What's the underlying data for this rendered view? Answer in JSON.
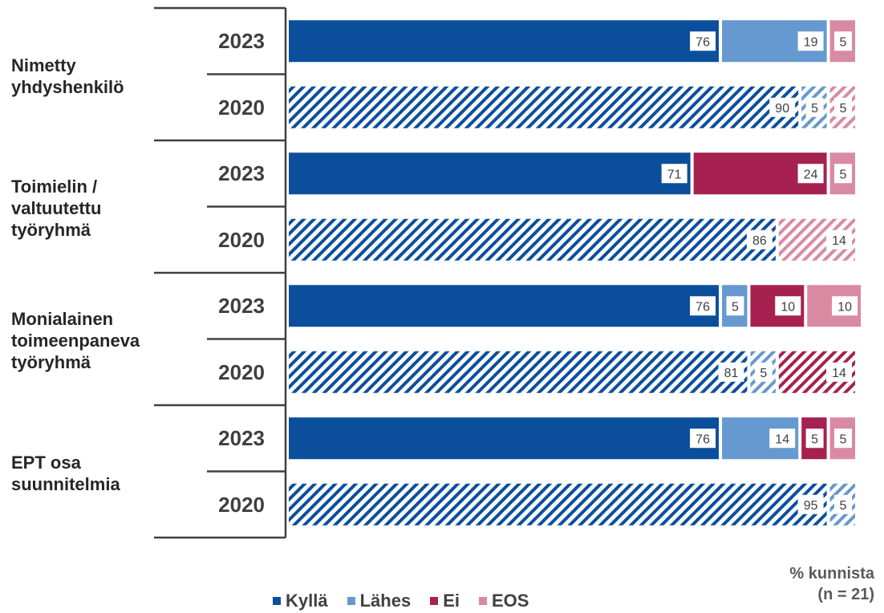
{
  "chart_data": {
    "type": "bar",
    "orientation": "horizontal",
    "stacked": true,
    "xlim": [
      0,
      100
    ],
    "groups": [
      {
        "label": "Nimetty yhdyshenkilö",
        "label_lines": [
          "Nimetty",
          "yhdyshenkilö"
        ],
        "rows": [
          {
            "year": "2023",
            "values": [
              76,
              19,
              0,
              5
            ],
            "labels": [
              "76",
              "19",
              "",
              "5"
            ]
          },
          {
            "year": "2020",
            "values": [
              90,
              5,
              0,
              5
            ],
            "labels": [
              "90",
              "5",
              "",
              "5"
            ]
          }
        ]
      },
      {
        "label": "Toimielin / valtuutettu työryhmä",
        "label_lines": [
          "Toimielin /",
          "valtuutettu",
          "työryhmä"
        ],
        "rows": [
          {
            "year": "2023",
            "values": [
              71,
              0,
              24,
              5
            ],
            "labels": [
              "71",
              "",
              "24",
              "5"
            ]
          },
          {
            "year": "2020",
            "values": [
              86,
              0,
              0,
              14
            ],
            "labels": [
              "86",
              "",
              "",
              "14"
            ]
          }
        ]
      },
      {
        "label": "Monialainen toimeenpaneva työryhmä",
        "label_lines": [
          "Monialainen",
          "toimeenpaneva",
          "työryhmä"
        ],
        "rows": [
          {
            "year": "2023",
            "values": [
              76,
              5,
              10,
              10
            ],
            "labels": [
              "76",
              "5",
              "10",
              "10"
            ]
          },
          {
            "year": "2020",
            "values": [
              81,
              5,
              14,
              0
            ],
            "labels": [
              "81",
              "5",
              "14",
              ""
            ]
          }
        ]
      },
      {
        "label": "EPT osa suunnitelmia",
        "label_lines": [
          "EPT osa",
          "suunnitelmia"
        ],
        "rows": [
          {
            "year": "2023",
            "values": [
              76,
              14,
              5,
              5
            ],
            "labels": [
              "76",
              "14",
              "5",
              "5"
            ]
          },
          {
            "year": "2020",
            "values": [
              95,
              5,
              0,
              0
            ],
            "labels": [
              "95",
              "5",
              "",
              ""
            ]
          }
        ]
      }
    ],
    "series": [
      {
        "name": "Kyllä",
        "color": "#0b4f9c"
      },
      {
        "name": "Lähes",
        "color": "#6599cf"
      },
      {
        "name": "Ei",
        "color": "#a6214f"
      },
      {
        "name": "EOS",
        "color": "#d98aa3"
      }
    ],
    "note_2020_pattern": "hatched",
    "footnote_lines": [
      "% kunnista",
      "(n = 21)"
    ],
    "legend_position": "bottom"
  }
}
